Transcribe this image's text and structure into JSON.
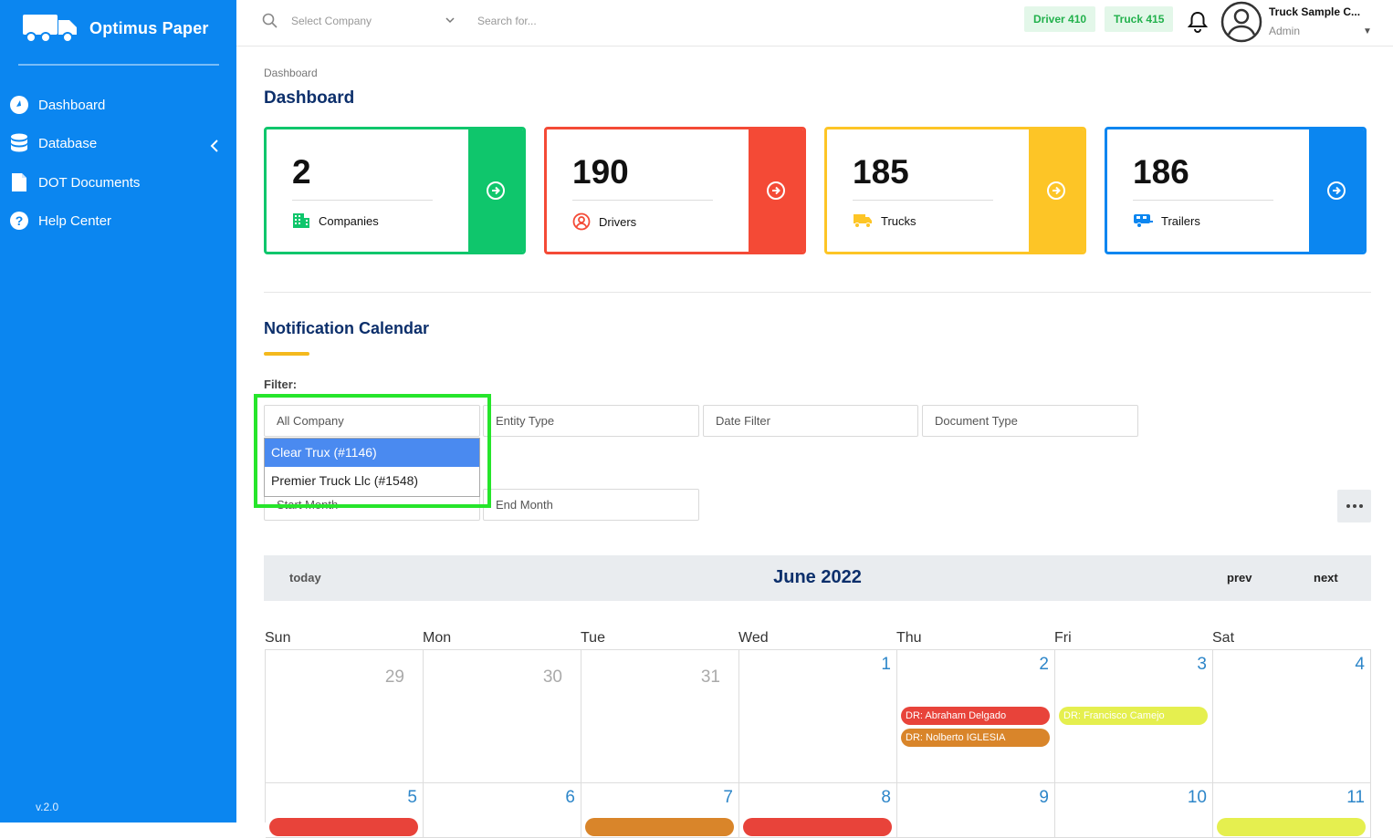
{
  "app": {
    "name": "Optimus Paper",
    "version": "v.2.0"
  },
  "sidebar": {
    "items": [
      {
        "label": "Dashboard",
        "icon": "dashboard-icon"
      },
      {
        "label": "Database",
        "icon": "database-icon"
      },
      {
        "label": "DOT Documents",
        "icon": "document-icon"
      },
      {
        "label": "Help Center",
        "icon": "help-icon"
      }
    ]
  },
  "topbar": {
    "company_placeholder": "Select Company",
    "search_placeholder": "Search for...",
    "badges": [
      "Driver 410",
      "Truck 415"
    ],
    "user": {
      "name": "Truck Sample C...",
      "role": "Admin"
    }
  },
  "breadcrumb": "Dashboard",
  "page_title": "Dashboard",
  "stats": [
    {
      "value": "2",
      "label": "Companies",
      "color": "#0fc66c"
    },
    {
      "value": "190",
      "label": "Drivers",
      "color": "#f44a36"
    },
    {
      "value": "185",
      "label": "Trucks",
      "color": "#fdc526"
    },
    {
      "value": "186",
      "label": "Trailers",
      "color": "#0b86f0"
    }
  ],
  "notification": {
    "title": "Notification Calendar",
    "filter_label": "Filter:",
    "filters": {
      "company": "All Company",
      "entity_type": "Entity Type",
      "date_filter": "Date Filter",
      "document_type": "Document Type",
      "start_month": "Start Month",
      "end_month": "End Month"
    },
    "company_options": [
      "Clear Trux (#1146)",
      "Premier Truck Llc (#1548)"
    ]
  },
  "calendar": {
    "title": "June 2022",
    "today_label": "today",
    "prev_label": "prev",
    "next_label": "next",
    "weekdays": [
      "Sun",
      "Mon",
      "Tue",
      "Wed",
      "Thu",
      "Fri",
      "Sat"
    ],
    "week1": [
      "29",
      "30",
      "31",
      "1",
      "2",
      "3",
      "4"
    ],
    "week2": [
      "5",
      "6",
      "7",
      "8",
      "9",
      "10",
      "11"
    ],
    "events": [
      {
        "label": "DR: Abraham Delgado",
        "color": "#e8433a"
      },
      {
        "label": "DR: Nolberto IGLESIA",
        "color": "#d9852a"
      },
      {
        "label": "DR: Francisco Camejo",
        "color": "#e5ef4f"
      }
    ]
  }
}
